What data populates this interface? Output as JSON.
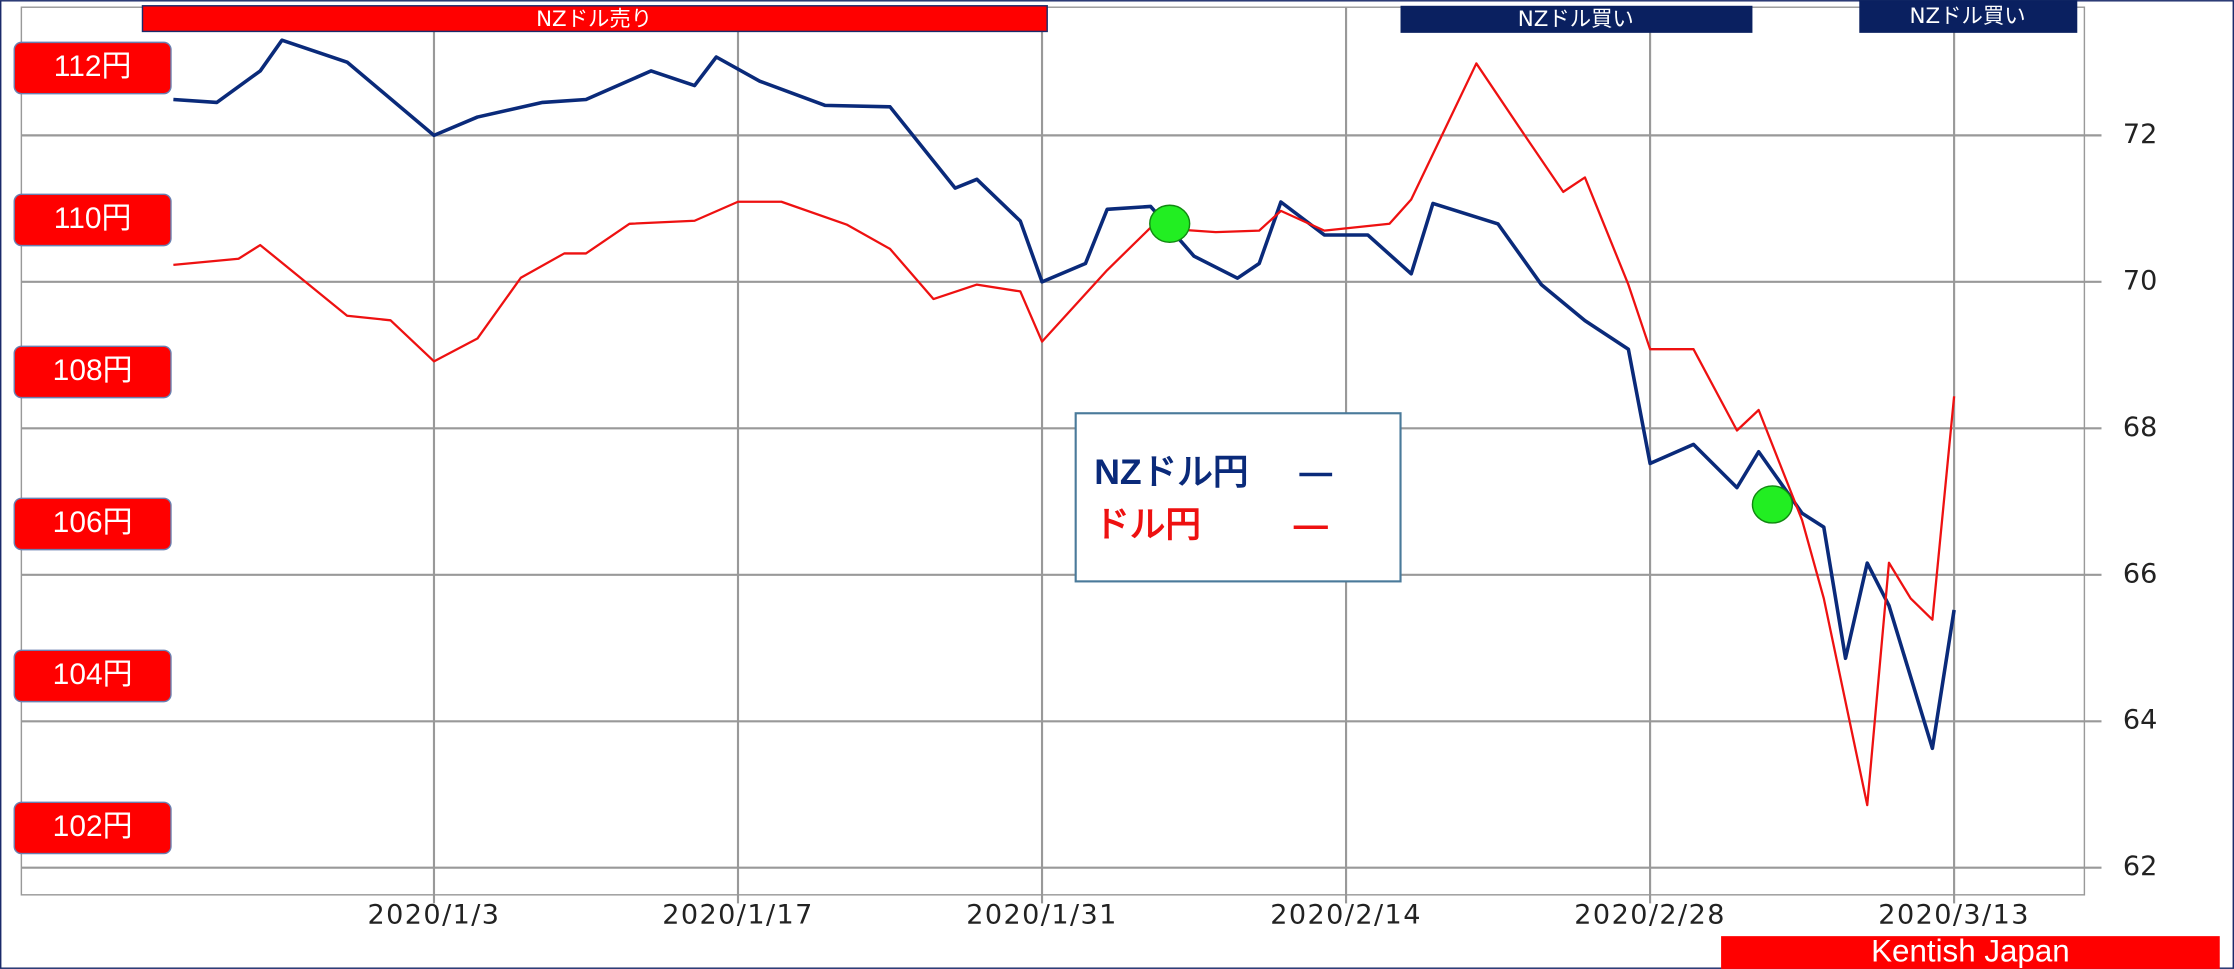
{
  "chart_data": {
    "type": "line",
    "annotations": [
      "NZドル売り",
      "NZドル買い",
      "NZドル買い",
      "Kentish Japan"
    ],
    "xlim": [
      "2019/12/15",
      "2020/3/19"
    ],
    "xticks": [
      "2020/1/3",
      "2020/1/17",
      "2020/1/31",
      "2020/2/14",
      "2020/2/28",
      "2020/3/13"
    ],
    "ylim": [
      61.63,
      73.75
    ],
    "yticks": [
      62,
      64,
      66,
      68,
      70,
      72
    ],
    "y2lim": [
      101.12,
      112.8
    ],
    "y2ticks": [
      {
        "value": 112,
        "label": "112円"
      },
      {
        "value": 110,
        "label": "110円"
      },
      {
        "value": 108,
        "label": "108円"
      },
      {
        "value": 106,
        "label": "106円"
      },
      {
        "value": 104,
        "label": "104円"
      },
      {
        "value": 102,
        "label": "102円"
      }
    ],
    "grid": true,
    "series": [
      {
        "name": "NZドル円",
        "color": "#0a2a7a",
        "x": [
          "2019/12/22",
          "2019/12/24",
          "2019/12/26",
          "2019/12/27",
          "2019/12/30",
          "2020/1/3",
          "2020/1/5",
          "2020/1/8",
          "2020/1/10",
          "2020/1/13",
          "2020/1/15",
          "2020/1/16",
          "2020/1/18",
          "2020/1/21",
          "2020/1/24",
          "2020/1/27",
          "2020/1/28",
          "2020/1/30",
          "2020/1/31",
          "2020/2/2",
          "2020/2/3",
          "2020/2/5",
          "2020/2/7",
          "2020/2/9",
          "2020/2/10",
          "2020/2/11",
          "2020/2/13",
          "2020/2/15",
          "2020/2/17",
          "2020/2/18",
          "2020/2/21",
          "2020/2/23",
          "2020/2/25",
          "2020/2/27",
          "2020/2/28",
          "2020/3/1",
          "2020/3/3",
          "2020/3/4",
          "2020/3/6",
          "2020/3/7",
          "2020/3/8",
          "2020/3/9",
          "2020/3/10",
          "2020/3/12",
          "2020/3/13"
        ],
        "values": [
          72.49,
          72.45,
          72.88,
          73.3,
          73.0,
          72.0,
          72.25,
          72.45,
          72.49,
          72.88,
          72.68,
          73.07,
          72.74,
          72.41,
          72.39,
          71.28,
          71.4,
          70.83,
          70.0,
          70.25,
          70.99,
          71.03,
          70.35,
          70.05,
          70.25,
          71.09,
          70.64,
          70.64,
          70.11,
          71.07,
          70.79,
          69.96,
          69.47,
          69.08,
          67.52,
          67.78,
          67.19,
          67.68,
          66.84,
          66.65,
          64.86,
          66.16,
          65.58,
          63.63,
          65.52
        ]
      },
      {
        "name": "ドル円",
        "color": "#ee1111",
        "axis": "y2",
        "x": [
          "2019/12/22",
          "2019/12/25",
          "2019/12/26",
          "2019/12/30",
          "2020/1/1",
          "2020/1/3",
          "2020/1/5",
          "2020/1/7",
          "2020/1/9",
          "2020/1/10",
          "2020/1/12",
          "2020/1/15",
          "2020/1/17",
          "2020/1/19",
          "2020/1/22",
          "2020/1/24",
          "2020/1/26",
          "2020/1/28",
          "2020/1/30",
          "2020/1/31",
          "2020/2/3",
          "2020/2/5",
          "2020/2/8",
          "2020/2/10",
          "2020/2/11",
          "2020/2/13",
          "2020/2/16",
          "2020/2/17",
          "2020/2/20",
          "2020/2/22",
          "2020/2/24",
          "2020/2/25",
          "2020/2/27",
          "2020/2/28",
          "2020/3/1",
          "2020/3/3",
          "2020/3/4",
          "2020/3/6",
          "2020/3/7",
          "2020/3/9",
          "2020/3/10",
          "2020/3/11",
          "2020/3/12",
          "2020/3/13"
        ],
        "values": [
          109.41,
          109.49,
          109.67,
          108.74,
          108.68,
          108.14,
          108.44,
          109.24,
          109.56,
          109.56,
          109.95,
          109.99,
          110.24,
          110.24,
          109.94,
          109.62,
          108.96,
          109.15,
          109.06,
          108.4,
          109.34,
          109.9,
          109.84,
          109.86,
          110.12,
          109.86,
          109.95,
          110.27,
          112.06,
          111.21,
          110.37,
          110.56,
          109.15,
          108.3,
          108.3,
          107.23,
          107.5,
          106.05,
          105.02,
          102.3,
          105.49,
          105.02,
          104.74,
          107.68
        ]
      }
    ]
  }
}
